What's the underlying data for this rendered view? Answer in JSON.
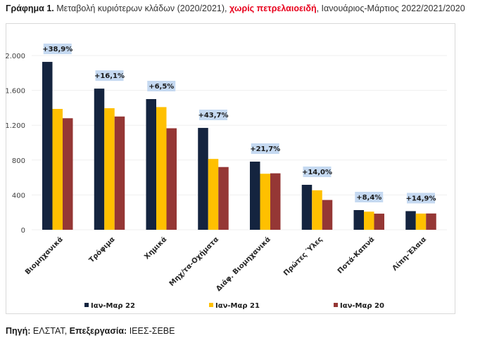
{
  "title": {
    "prefix": "Γράφημα 1.",
    "main": " Μεταβολή κυριότερων κλάδων (2020/2021), ",
    "highlight": "χωρίς πετρελαιοειδή",
    "suffix": ", Ιανουάριος-Μάρτιος 2022/2021/2020"
  },
  "source": {
    "label1": "Πηγή:",
    "value1": " ΕΛΣΤΑΤ, ",
    "label2": "Επεξεργασία:",
    "value2": " ΙΕΕΣ-ΣΕΒΕ"
  },
  "chart_data": {
    "type": "bar",
    "title": "Μεταβολή κυριότερων κλάδων (2020/2021), χωρίς πετρελαιοειδή, Ιανουάριος-Μάρτιος 2022/2021/2020",
    "xlabel": "",
    "ylabel": "",
    "ylim": [
      0,
      2000
    ],
    "yticks": [
      0,
      400,
      800,
      1200,
      1600,
      2000
    ],
    "ytick_labels": [
      "0",
      "400",
      "800",
      "1.200",
      "1.600",
      "2.000"
    ],
    "grid": true,
    "legend_position": "bottom",
    "categories": [
      "Βιομηχανικά",
      "Τρόφιμα",
      "Χημικά",
      "Μηχ/τα-Οχήματα",
      "Διάφ. Βιομηχανικά",
      "Πρώτες Ύλες",
      "Ποτά-Καπνά",
      "Λίπη-Έλαια"
    ],
    "series": [
      {
        "name": "Ιαν-Μαρ 22",
        "color": "#14243f",
        "values": [
          1927,
          1620,
          1500,
          1169,
          782,
          516,
          226,
          214
        ]
      },
      {
        "name": "Ιαν-Μαρ 21",
        "color": "#ffc000",
        "values": [
          1387,
          1395,
          1408,
          813,
          643,
          453,
          208,
          186
        ]
      },
      {
        "name": "Ιαν-Μαρ 20",
        "color": "#953735",
        "values": [
          1280,
          1300,
          1165,
          720,
          648,
          342,
          185,
          187
        ]
      }
    ],
    "annotations": [
      "+38,9%",
      "+16,1%",
      "+6,5%",
      "+43,7%",
      "+21,7%",
      "+14,0%",
      "+8,4%",
      "+14,9%"
    ],
    "annotation_bg": "#c5d9f1"
  }
}
